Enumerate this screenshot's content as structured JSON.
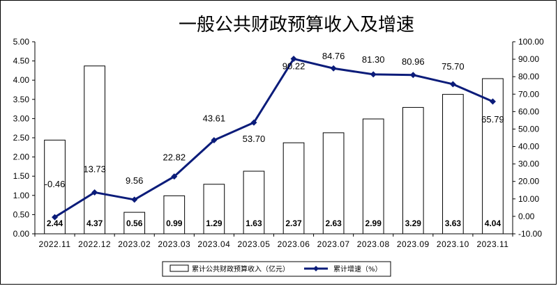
{
  "chart_data": {
    "type": "bar",
    "title": "一般公共财政预算收入及增速",
    "categories": [
      "2022.11",
      "2022.12",
      "2023.02",
      "2023.03",
      "2023.04",
      "2023.05",
      "2023.06",
      "2023.07",
      "2023.08",
      "2023.09",
      "2023.10",
      "2023.11"
    ],
    "series": [
      {
        "name": "累计公共财政预算收入（亿元）",
        "type": "bar",
        "axis": "left",
        "values": [
          2.44,
          4.37,
          0.56,
          0.99,
          1.29,
          1.63,
          2.37,
          2.63,
          2.99,
          3.29,
          3.63,
          4.04
        ],
        "labels": [
          "2.44",
          "4.37",
          "0.56",
          "0.99",
          "1.29",
          "1.63",
          "2.37",
          "2.63",
          "2.99",
          "3.29",
          "3.63",
          "4.04"
        ],
        "color": "#ffffff"
      },
      {
        "name": "累计增速（%）",
        "type": "line",
        "axis": "right",
        "values": [
          -0.46,
          13.73,
          9.56,
          22.82,
          43.61,
          53.7,
          90.22,
          84.76,
          81.3,
          80.96,
          75.7,
          65.79
        ],
        "labels": [
          "-0.46",
          "13.73",
          "9.56",
          "22.82",
          "43.61",
          "53.70",
          "90.22",
          "84.76",
          "81.30",
          "80.96",
          "75.70",
          "65.79"
        ],
        "color": "#0b1c7a"
      }
    ],
    "y_left": {
      "lim": [
        0,
        5
      ],
      "ticks": [
        "0.00",
        "0.50",
        "1.00",
        "1.50",
        "2.00",
        "2.50",
        "3.00",
        "3.50",
        "4.00",
        "4.50",
        "5.00"
      ]
    },
    "y_right": {
      "lim": [
        -10,
        100
      ],
      "ticks": [
        "-10.00",
        "0.00",
        "10.00",
        "20.00",
        "30.00",
        "40.00",
        "50.00",
        "60.00",
        "70.00",
        "80.00",
        "90.00",
        "100.00"
      ]
    },
    "grid": false,
    "legend": "bottom"
  },
  "colors": {
    "line": "#0b1c7a",
    "bar_fill": "#ffffff",
    "bar_stroke": "#000000"
  }
}
